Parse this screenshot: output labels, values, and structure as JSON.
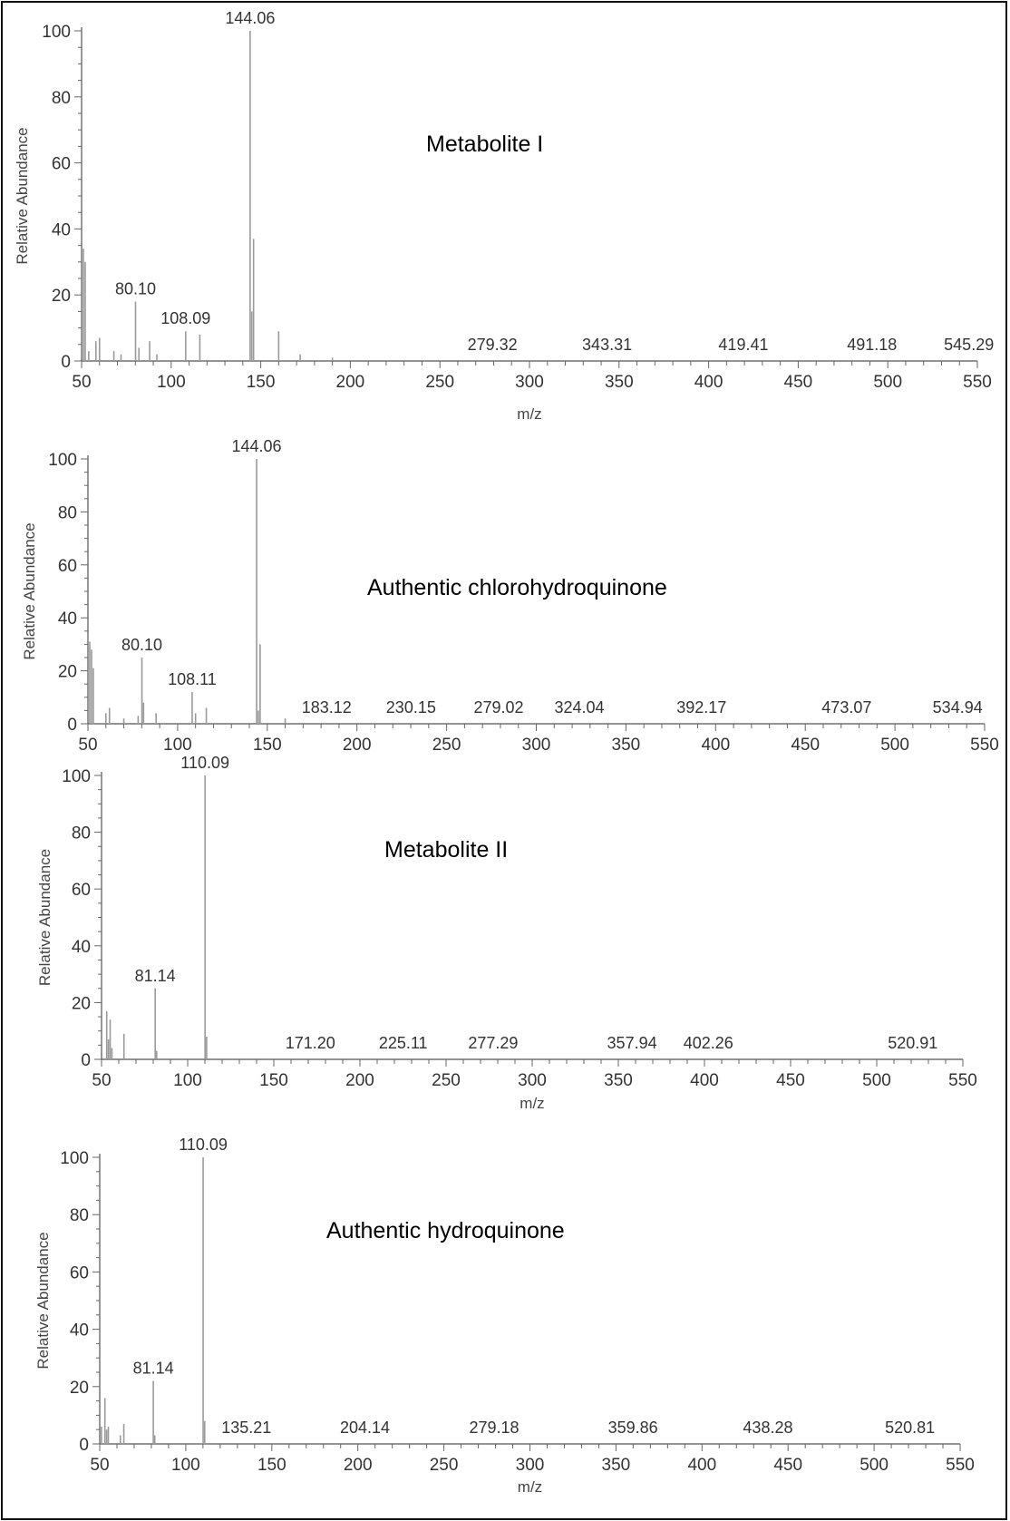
{
  "chart_data": [
    {
      "type": "bar",
      "title": "Metabolite I",
      "xlabel": "m/z",
      "ylabel": "Relative Abundance",
      "xlim": [
        50,
        550
      ],
      "ylim": [
        0,
        100
      ],
      "x_ticks": [
        50,
        100,
        150,
        200,
        250,
        300,
        350,
        400,
        450,
        500,
        550
      ],
      "y_ticks": [
        0,
        20,
        40,
        60,
        80,
        100
      ],
      "peaks": [
        {
          "x": 51,
          "y": 34
        },
        {
          "x": 52,
          "y": 30
        },
        {
          "x": 54,
          "y": 3
        },
        {
          "x": 58,
          "y": 6
        },
        {
          "x": 60,
          "y": 7
        },
        {
          "x": 68,
          "y": 3
        },
        {
          "x": 72,
          "y": 2
        },
        {
          "x": 80.1,
          "y": 18
        },
        {
          "x": 82,
          "y": 4
        },
        {
          "x": 88,
          "y": 6
        },
        {
          "x": 92,
          "y": 2
        },
        {
          "x": 108.09,
          "y": 9
        },
        {
          "x": 116,
          "y": 8
        },
        {
          "x": 144.06,
          "y": 100
        },
        {
          "x": 145,
          "y": 15
        },
        {
          "x": 146,
          "y": 37
        },
        {
          "x": 160,
          "y": 9
        },
        {
          "x": 172,
          "y": 2
        },
        {
          "x": 190,
          "y": 1
        }
      ],
      "labels": [
        {
          "x": 144.06,
          "text": "144.06"
        },
        {
          "x": 80.1,
          "text": "80.10"
        },
        {
          "x": 108.09,
          "text": "108.09"
        },
        {
          "x": 279.32,
          "text": "279.32"
        },
        {
          "x": 343.31,
          "text": "343.31"
        },
        {
          "x": 419.41,
          "text": "419.41"
        },
        {
          "x": 491.18,
          "text": "491.18"
        },
        {
          "x": 545.29,
          "text": "545.29"
        }
      ]
    },
    {
      "type": "bar",
      "title": "Authentic chlorohydroquinone",
      "xlabel": "",
      "ylabel": "Relative Abundance",
      "xlim": [
        50,
        550
      ],
      "ylim": [
        0,
        100
      ],
      "x_ticks": [
        50,
        100,
        150,
        200,
        250,
        300,
        350,
        400,
        450,
        500,
        550
      ],
      "y_ticks": [
        0,
        20,
        40,
        60,
        80,
        100
      ],
      "peaks": [
        {
          "x": 51,
          "y": 31
        },
        {
          "x": 52,
          "y": 28
        },
        {
          "x": 53,
          "y": 21
        },
        {
          "x": 60,
          "y": 4
        },
        {
          "x": 62,
          "y": 6
        },
        {
          "x": 70,
          "y": 2
        },
        {
          "x": 78,
          "y": 3
        },
        {
          "x": 80.1,
          "y": 25
        },
        {
          "x": 81,
          "y": 8
        },
        {
          "x": 88,
          "y": 4
        },
        {
          "x": 108.11,
          "y": 12
        },
        {
          "x": 110,
          "y": 4
        },
        {
          "x": 116,
          "y": 6
        },
        {
          "x": 144.06,
          "y": 100
        },
        {
          "x": 145,
          "y": 5
        },
        {
          "x": 146,
          "y": 30
        },
        {
          "x": 160,
          "y": 2
        }
      ],
      "labels": [
        {
          "x": 144.06,
          "text": "144.06"
        },
        {
          "x": 80.1,
          "text": "80.10"
        },
        {
          "x": 108.11,
          "text": "108.11"
        },
        {
          "x": 183.12,
          "text": "183.12"
        },
        {
          "x": 230.15,
          "text": "230.15"
        },
        {
          "x": 279.02,
          "text": "279.02"
        },
        {
          "x": 324.04,
          "text": "324.04"
        },
        {
          "x": 392.17,
          "text": "392.17"
        },
        {
          "x": 473.07,
          "text": "473.07"
        },
        {
          "x": 534.94,
          "text": "534.94"
        }
      ]
    },
    {
      "type": "bar",
      "title": "Metabolite II",
      "xlabel": "m/z",
      "ylabel": "Relative Abundance",
      "xlim": [
        50,
        550
      ],
      "ylim": [
        0,
        100
      ],
      "x_ticks": [
        50,
        100,
        150,
        200,
        250,
        300,
        350,
        400,
        450,
        500,
        550
      ],
      "y_ticks": [
        0,
        20,
        40,
        60,
        80,
        100
      ],
      "peaks": [
        {
          "x": 53,
          "y": 17
        },
        {
          "x": 54,
          "y": 7
        },
        {
          "x": 55,
          "y": 14
        },
        {
          "x": 56,
          "y": 4
        },
        {
          "x": 63,
          "y": 9
        },
        {
          "x": 81.14,
          "y": 25
        },
        {
          "x": 82,
          "y": 3
        },
        {
          "x": 110.09,
          "y": 100
        },
        {
          "x": 111,
          "y": 8
        }
      ],
      "labels": [
        {
          "x": 110.09,
          "text": "110.09"
        },
        {
          "x": 81.14,
          "text": "81.14"
        },
        {
          "x": 171.2,
          "text": "171.20"
        },
        {
          "x": 225.11,
          "text": "225.11"
        },
        {
          "x": 277.29,
          "text": "277.29"
        },
        {
          "x": 357.94,
          "text": "357.94"
        },
        {
          "x": 402.26,
          "text": "402.26"
        },
        {
          "x": 520.91,
          "text": "520.91"
        }
      ]
    },
    {
      "type": "bar",
      "title": "Authentic hydroquinone",
      "xlabel": "m/z",
      "ylabel": "Relative Abundance",
      "xlim": [
        50,
        550
      ],
      "ylim": [
        0,
        100
      ],
      "x_ticks": [
        50,
        100,
        150,
        200,
        250,
        300,
        350,
        400,
        450,
        500,
        550
      ],
      "y_ticks": [
        0,
        20,
        40,
        60,
        80,
        100
      ],
      "peaks": [
        {
          "x": 51,
          "y": 6
        },
        {
          "x": 53,
          "y": 16
        },
        {
          "x": 54,
          "y": 5
        },
        {
          "x": 55,
          "y": 6
        },
        {
          "x": 62,
          "y": 3
        },
        {
          "x": 64,
          "y": 7
        },
        {
          "x": 81.14,
          "y": 22
        },
        {
          "x": 82,
          "y": 3
        },
        {
          "x": 110.09,
          "y": 100
        },
        {
          "x": 111,
          "y": 8
        }
      ],
      "labels": [
        {
          "x": 110.09,
          "text": "110.09"
        },
        {
          "x": 81.14,
          "text": "81.14"
        },
        {
          "x": 135.21,
          "text": "135.21"
        },
        {
          "x": 204.14,
          "text": "204.14"
        },
        {
          "x": 279.18,
          "text": "279.18"
        },
        {
          "x": 359.86,
          "text": "359.86"
        },
        {
          "x": 438.28,
          "text": "438.28"
        },
        {
          "x": 520.81,
          "text": "520.81"
        }
      ]
    }
  ]
}
